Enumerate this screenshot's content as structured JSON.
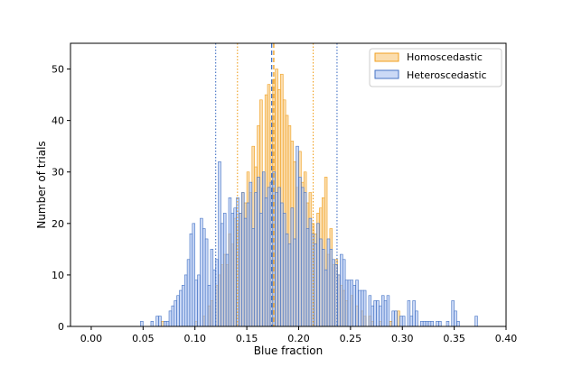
{
  "chart_data": {
    "type": "histogram",
    "title": "",
    "xlabel": "Blue fraction",
    "ylabel": "Number of trials",
    "xlim": [
      -0.02,
      0.4
    ],
    "ylim": [
      0,
      55
    ],
    "xticks": [
      0.0,
      0.05,
      0.1,
      0.15,
      0.2,
      0.25,
      0.3,
      0.35,
      0.4
    ],
    "xtick_labels": [
      "0.00",
      "0.05",
      "0.10",
      "0.15",
      "0.20",
      "0.25",
      "0.30",
      "0.35",
      "0.40"
    ],
    "yticks": [
      0,
      10,
      20,
      30,
      40,
      50
    ],
    "ytick_labels": [
      "0",
      "10",
      "20",
      "30",
      "40",
      "50"
    ],
    "grid": false,
    "legend_position": "top-right",
    "bin_width": 0.0025,
    "series": [
      {
        "name": "Homoscedastic",
        "color": "#f0a020",
        "fill": "#fad7a0",
        "bins": [
          [
            0.0675,
            1
          ],
          [
            0.1,
            1
          ],
          [
            0.1075,
            2
          ],
          [
            0.1125,
            4
          ],
          [
            0.115,
            5
          ],
          [
            0.12,
            8
          ],
          [
            0.1225,
            10
          ],
          [
            0.125,
            12
          ],
          [
            0.1275,
            14
          ],
          [
            0.13,
            12
          ],
          [
            0.1325,
            18
          ],
          [
            0.135,
            16
          ],
          [
            0.1375,
            21
          ],
          [
            0.14,
            20
          ],
          [
            0.1425,
            22
          ],
          [
            0.145,
            26
          ],
          [
            0.1475,
            24
          ],
          [
            0.15,
            30
          ],
          [
            0.1525,
            26
          ],
          [
            0.155,
            35
          ],
          [
            0.1575,
            31
          ],
          [
            0.16,
            39
          ],
          [
            0.1625,
            44
          ],
          [
            0.165,
            30
          ],
          [
            0.1675,
            45
          ],
          [
            0.17,
            47
          ],
          [
            0.1725,
            40
          ],
          [
            0.175,
            48
          ],
          [
            0.1775,
            50
          ],
          [
            0.18,
            46
          ],
          [
            0.1825,
            49
          ],
          [
            0.185,
            44
          ],
          [
            0.1875,
            41
          ],
          [
            0.19,
            39
          ],
          [
            0.1925,
            36
          ],
          [
            0.195,
            32
          ],
          [
            0.1975,
            27
          ],
          [
            0.2,
            34
          ],
          [
            0.2025,
            28
          ],
          [
            0.205,
            30
          ],
          [
            0.2075,
            24
          ],
          [
            0.21,
            26
          ],
          [
            0.2125,
            20
          ],
          [
            0.215,
            18
          ],
          [
            0.2175,
            22
          ],
          [
            0.22,
            23
          ],
          [
            0.2225,
            25
          ],
          [
            0.225,
            29
          ],
          [
            0.2275,
            14
          ],
          [
            0.23,
            19
          ],
          [
            0.2325,
            12
          ],
          [
            0.235,
            13
          ],
          [
            0.2375,
            10
          ],
          [
            0.24,
            8
          ],
          [
            0.2425,
            7
          ],
          [
            0.245,
            5
          ],
          [
            0.25,
            6
          ],
          [
            0.255,
            4
          ],
          [
            0.26,
            3
          ],
          [
            0.2625,
            2
          ],
          [
            0.2675,
            2
          ],
          [
            0.27,
            1
          ],
          [
            0.2775,
            1
          ],
          [
            0.2875,
            1
          ],
          [
            0.295,
            3
          ]
        ]
      },
      {
        "name": "Heteroscedastic",
        "color": "#4472c4",
        "fill": "#a9bff0",
        "bins": [
          [
            0.0475,
            1
          ],
          [
            0.0575,
            1
          ],
          [
            0.0625,
            2
          ],
          [
            0.065,
            2
          ],
          [
            0.07,
            1
          ],
          [
            0.0725,
            1
          ],
          [
            0.075,
            3
          ],
          [
            0.0775,
            4
          ],
          [
            0.08,
            5
          ],
          [
            0.0825,
            6
          ],
          [
            0.085,
            7
          ],
          [
            0.0875,
            8
          ],
          [
            0.09,
            10
          ],
          [
            0.0925,
            13
          ],
          [
            0.095,
            18
          ],
          [
            0.0975,
            20
          ],
          [
            0.1,
            9
          ],
          [
            0.1025,
            10
          ],
          [
            0.105,
            21
          ],
          [
            0.1075,
            19
          ],
          [
            0.11,
            17
          ],
          [
            0.1125,
            8
          ],
          [
            0.115,
            15
          ],
          [
            0.1175,
            11
          ],
          [
            0.12,
            13
          ],
          [
            0.1225,
            32
          ],
          [
            0.125,
            20
          ],
          [
            0.1275,
            22
          ],
          [
            0.13,
            14
          ],
          [
            0.1325,
            25
          ],
          [
            0.135,
            22
          ],
          [
            0.1375,
            23
          ],
          [
            0.14,
            25
          ],
          [
            0.1425,
            22
          ],
          [
            0.145,
            26
          ],
          [
            0.1475,
            21
          ],
          [
            0.15,
            24
          ],
          [
            0.1525,
            28
          ],
          [
            0.155,
            19
          ],
          [
            0.1575,
            26
          ],
          [
            0.16,
            29
          ],
          [
            0.1625,
            22
          ],
          [
            0.165,
            30
          ],
          [
            0.1675,
            25
          ],
          [
            0.17,
            27
          ],
          [
            0.1725,
            28
          ],
          [
            0.175,
            30
          ],
          [
            0.1775,
            26
          ],
          [
            0.18,
            27
          ],
          [
            0.1825,
            24
          ],
          [
            0.185,
            22
          ],
          [
            0.1875,
            18
          ],
          [
            0.19,
            16
          ],
          [
            0.1925,
            23
          ],
          [
            0.195,
            17
          ],
          [
            0.1975,
            35
          ],
          [
            0.2,
            29
          ],
          [
            0.2025,
            27
          ],
          [
            0.205,
            26
          ],
          [
            0.2075,
            19
          ],
          [
            0.21,
            21
          ],
          [
            0.2125,
            18
          ],
          [
            0.215,
            16
          ],
          [
            0.2175,
            20
          ],
          [
            0.22,
            17
          ],
          [
            0.2225,
            15
          ],
          [
            0.225,
            11
          ],
          [
            0.2275,
            17
          ],
          [
            0.23,
            15
          ],
          [
            0.2325,
            13
          ],
          [
            0.235,
            12
          ],
          [
            0.2375,
            10
          ],
          [
            0.24,
            14
          ],
          [
            0.2425,
            13
          ],
          [
            0.245,
            9
          ],
          [
            0.2475,
            9
          ],
          [
            0.25,
            9
          ],
          [
            0.2525,
            8
          ],
          [
            0.255,
            9
          ],
          [
            0.2575,
            7
          ],
          [
            0.26,
            7
          ],
          [
            0.2625,
            7
          ],
          [
            0.2675,
            6
          ],
          [
            0.27,
            4
          ],
          [
            0.2725,
            5
          ],
          [
            0.275,
            5
          ],
          [
            0.2775,
            4
          ],
          [
            0.28,
            6
          ],
          [
            0.2825,
            5
          ],
          [
            0.285,
            6
          ],
          [
            0.29,
            3
          ],
          [
            0.2925,
            3
          ],
          [
            0.2975,
            2
          ],
          [
            0.3,
            2
          ],
          [
            0.305,
            5
          ],
          [
            0.3075,
            2
          ],
          [
            0.31,
            5
          ],
          [
            0.3125,
            3
          ],
          [
            0.3175,
            1
          ],
          [
            0.32,
            1
          ],
          [
            0.3225,
            1
          ],
          [
            0.325,
            1
          ],
          [
            0.3275,
            1
          ],
          [
            0.3325,
            1
          ],
          [
            0.335,
            1
          ],
          [
            0.3425,
            1
          ],
          [
            0.3475,
            5
          ],
          [
            0.35,
            3
          ],
          [
            0.3525,
            1
          ],
          [
            0.37,
            2
          ]
        ]
      }
    ],
    "reference_lines": [
      {
        "series": "Homoscedastic",
        "kind": "mean",
        "style": "dashed",
        "x": 0.176
      },
      {
        "series": "Homoscedastic",
        "kind": "lower",
        "style": "dotted",
        "x": 0.141
      },
      {
        "series": "Homoscedastic",
        "kind": "upper",
        "style": "dotted",
        "x": 0.214
      },
      {
        "series": "Heteroscedastic",
        "kind": "mean",
        "style": "dashed",
        "x": 0.174
      },
      {
        "series": "Heteroscedastic",
        "kind": "lower",
        "style": "dotted",
        "x": 0.12
      },
      {
        "series": "Heteroscedastic",
        "kind": "upper",
        "style": "dotted",
        "x": 0.237
      }
    ]
  }
}
